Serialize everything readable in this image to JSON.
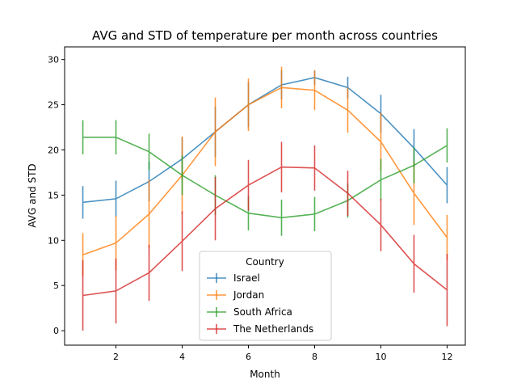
{
  "chart_data": {
    "type": "line",
    "title": "AVG and STD of temperature per month across countries",
    "xlabel": "Month",
    "ylabel": "AVG and STD",
    "xlim": [
      0.45,
      12.55
    ],
    "ylim": [
      -1.6,
      31.4
    ],
    "xticks": [
      2,
      4,
      6,
      8,
      10,
      12
    ],
    "yticks": [
      0,
      5,
      10,
      15,
      20,
      25,
      30
    ],
    "grid": false,
    "legend": {
      "title": "Country",
      "placement": "lower-center"
    },
    "x": [
      1,
      2,
      3,
      4,
      5,
      6,
      7,
      8,
      9,
      10,
      11,
      12
    ],
    "series": [
      {
        "name": "Israel",
        "color": "#1f77b4",
        "values": [
          14.2,
          14.6,
          16.5,
          19.0,
          22.0,
          25.0,
          27.2,
          28.0,
          26.9,
          24.0,
          20.2,
          16.1
        ],
        "std": [
          1.8,
          2.0,
          2.2,
          2.4,
          2.8,
          2.5,
          1.6,
          0.8,
          1.2,
          2.1,
          2.1,
          2.0
        ]
      },
      {
        "name": "Jordan",
        "color": "#ff7f0e",
        "values": [
          8.4,
          9.7,
          12.9,
          17.2,
          22.0,
          25.0,
          26.9,
          26.6,
          24.4,
          20.9,
          15.2,
          10.3
        ],
        "std": [
          2.4,
          3.0,
          3.8,
          4.3,
          3.8,
          2.9,
          2.3,
          2.2,
          2.5,
          3.2,
          3.5,
          2.5
        ]
      },
      {
        "name": "South Africa",
        "color": "#2ca02c",
        "values": [
          21.4,
          21.4,
          19.8,
          17.2,
          15.0,
          13.0,
          12.5,
          12.9,
          14.4,
          16.7,
          18.3,
          20.5
        ],
        "std": [
          1.9,
          1.9,
          2.0,
          2.2,
          2.2,
          1.9,
          2.0,
          1.9,
          1.9,
          2.3,
          2.0,
          1.9
        ]
      },
      {
        "name": "The Netherlands",
        "color": "#d62728",
        "values": [
          3.9,
          4.4,
          6.4,
          9.9,
          13.5,
          16.1,
          18.1,
          18.0,
          15.2,
          11.7,
          7.4,
          4.5
        ],
        "std": [
          3.9,
          3.6,
          3.1,
          3.3,
          3.5,
          2.8,
          2.8,
          2.5,
          2.5,
          2.9,
          3.2,
          4.0
        ]
      }
    ]
  }
}
